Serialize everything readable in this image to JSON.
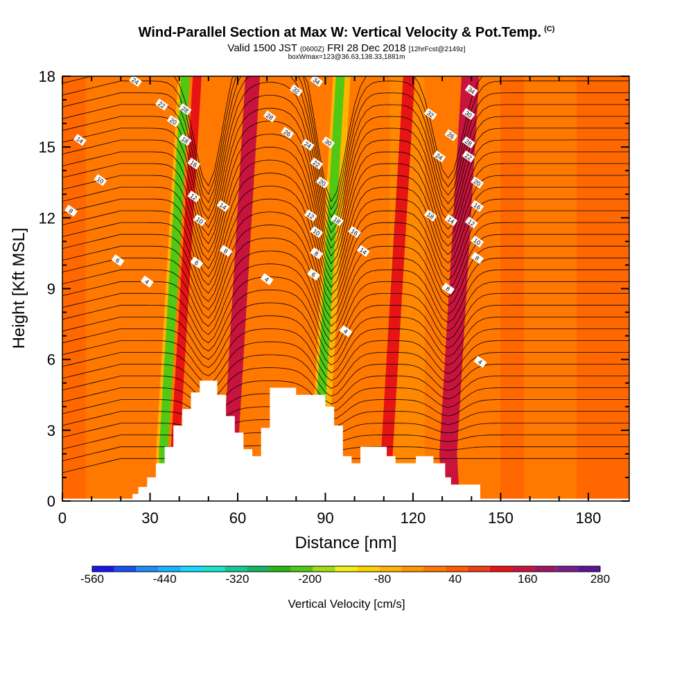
{
  "header": {
    "title": "Wind-Parallel Section at Max W: Vertical Velocity & Pot.Temp.",
    "copyright": "(C)",
    "valid_prefix": "Valid 1500 JST",
    "valid_utc": "(0600Z)",
    "valid_date": "FRI 28 Dec 2018",
    "forecast_info": "[12hrFcst@2149z]",
    "box_info": "boxWmax=123@36.63,138.33,1881m"
  },
  "chart_data": {
    "type": "heatmap",
    "xlabel": "Distance [nm]",
    "ylabel": "Height [Kft MSL]",
    "xlim": [
      0,
      194
    ],
    "ylim": [
      0,
      18
    ],
    "x_ticks": [
      0,
      30,
      60,
      90,
      120,
      150,
      180
    ],
    "y_ticks": [
      0,
      3,
      6,
      9,
      12,
      15,
      18
    ],
    "colorbar": {
      "title": "Vertical Velocity [cm/s]",
      "tick_labels": [
        "-560",
        "-440",
        "-320",
        "-200",
        "-80",
        "40",
        "160",
        "280"
      ],
      "tick_values": [
        -560,
        -440,
        -320,
        -200,
        -80,
        40,
        160,
        280
      ],
      "colors": [
        "#1a14f0",
        "#1450f0",
        "#1e8cf5",
        "#14b4ff",
        "#14d8ff",
        "#14e6c8",
        "#14c896",
        "#14b464",
        "#28b414",
        "#50c814",
        "#a0dc14",
        "#f0f014",
        "#ffd200",
        "#ffb400",
        "#ff9600",
        "#ff7800",
        "#ff5a00",
        "#f03c14",
        "#e61414",
        "#c8143c",
        "#a01464",
        "#781e8c",
        "#5a1496"
      ]
    },
    "terrain_profile": [
      [
        0,
        0.1
      ],
      [
        24,
        0.1
      ],
      [
        24,
        0.3
      ],
      [
        26,
        0.3
      ],
      [
        26,
        0.6
      ],
      [
        29,
        0.6
      ],
      [
        29,
        1.0
      ],
      [
        32,
        1.0
      ],
      [
        32,
        1.6
      ],
      [
        35,
        1.6
      ],
      [
        35,
        2.3
      ],
      [
        38,
        2.3
      ],
      [
        38,
        3.2
      ],
      [
        41,
        3.2
      ],
      [
        41,
        3.9
      ],
      [
        44,
        3.9
      ],
      [
        44,
        4.6
      ],
      [
        47,
        4.6
      ],
      [
        47,
        5.1
      ],
      [
        53,
        5.1
      ],
      [
        53,
        4.5
      ],
      [
        56,
        4.5
      ],
      [
        56,
        3.6
      ],
      [
        59,
        3.6
      ],
      [
        59,
        2.9
      ],
      [
        62,
        2.9
      ],
      [
        62,
        2.2
      ],
      [
        65,
        2.2
      ],
      [
        65,
        1.9
      ],
      [
        68,
        1.9
      ],
      [
        68,
        3.1
      ],
      [
        71,
        3.1
      ],
      [
        71,
        4.8
      ],
      [
        80,
        4.8
      ],
      [
        80,
        4.5
      ],
      [
        90,
        4.5
      ],
      [
        90,
        4.0
      ],
      [
        93,
        4.0
      ],
      [
        93,
        3.2
      ],
      [
        96,
        3.2
      ],
      [
        96,
        1.9
      ],
      [
        99,
        1.9
      ],
      [
        99,
        1.6
      ],
      [
        102,
        1.6
      ],
      [
        102,
        2.3
      ],
      [
        111,
        2.3
      ],
      [
        111,
        1.9
      ],
      [
        114,
        1.9
      ],
      [
        114,
        1.6
      ],
      [
        121,
        1.6
      ],
      [
        121,
        1.9
      ],
      [
        127,
        1.9
      ],
      [
        127,
        1.6
      ],
      [
        131,
        1.6
      ],
      [
        131,
        1.0
      ],
      [
        133,
        1.0
      ],
      [
        133,
        0.7
      ],
      [
        143,
        0.7
      ],
      [
        143,
        0.1
      ],
      [
        194,
        0.1
      ]
    ],
    "velocity_bands": [
      {
        "x_low": 33,
        "x_high": 37,
        "velocity": -80
      },
      {
        "x_low": 34,
        "x_high": 37,
        "velocity": -200
      },
      {
        "x_low": 38,
        "x_high": 41,
        "velocity": 120
      },
      {
        "x_low": 56,
        "x_high": 61,
        "velocity": 150
      },
      {
        "x_low": 57,
        "x_high": 60,
        "velocity": 170
      },
      {
        "x_low": 86,
        "x_high": 92,
        "velocity": -80
      },
      {
        "x_low": 87,
        "x_high": 90,
        "velocity": -200
      },
      {
        "x_low": 110,
        "x_high": 114,
        "velocity": 120
      },
      {
        "x_low": 130,
        "x_high": 136,
        "velocity": 150
      },
      {
        "x_low": 130,
        "x_high": 133,
        "velocity": 170
      }
    ],
    "contour_labels": [
      {
        "text": "24",
        "x": 25,
        "y": 17.8
      },
      {
        "text": "22",
        "x": 34,
        "y": 16.8
      },
      {
        "text": "28",
        "x": 42,
        "y": 16.6
      },
      {
        "text": "20",
        "x": 38,
        "y": 16.1
      },
      {
        "text": "18",
        "x": 42,
        "y": 15.3
      },
      {
        "text": "16",
        "x": 45,
        "y": 14.3
      },
      {
        "text": "14",
        "x": 6,
        "y": 15.3
      },
      {
        "text": "10",
        "x": 13,
        "y": 13.6
      },
      {
        "text": "12",
        "x": 45,
        "y": 12.9
      },
      {
        "text": "14",
        "x": 55,
        "y": 12.5
      },
      {
        "text": "10",
        "x": 47,
        "y": 11.9
      },
      {
        "text": "8",
        "x": 3,
        "y": 12.3
      },
      {
        "text": "8",
        "x": 56,
        "y": 10.6
      },
      {
        "text": "6",
        "x": 19,
        "y": 10.2
      },
      {
        "text": "6",
        "x": 46,
        "y": 10.1
      },
      {
        "text": "4",
        "x": 29,
        "y": 9.3
      },
      {
        "text": "4",
        "x": 70,
        "y": 9.4
      },
      {
        "text": "32",
        "x": 80,
        "y": 17.4
      },
      {
        "text": "34",
        "x": 87,
        "y": 17.8
      },
      {
        "text": "28",
        "x": 71,
        "y": 16.3
      },
      {
        "text": "26",
        "x": 77,
        "y": 15.6
      },
      {
        "text": "24",
        "x": 84,
        "y": 15.1
      },
      {
        "text": "30",
        "x": 91,
        "y": 15.2
      },
      {
        "text": "22",
        "x": 87,
        "y": 14.3
      },
      {
        "text": "20",
        "x": 89,
        "y": 13.5
      },
      {
        "text": "12",
        "x": 85,
        "y": 12.1
      },
      {
        "text": "18",
        "x": 94,
        "y": 11.9
      },
      {
        "text": "16",
        "x": 100,
        "y": 11.4
      },
      {
        "text": "10",
        "x": 87,
        "y": 11.4
      },
      {
        "text": "14",
        "x": 103,
        "y": 10.6
      },
      {
        "text": "8",
        "x": 87,
        "y": 10.5
      },
      {
        "text": "6",
        "x": 86,
        "y": 9.6
      },
      {
        "text": "4",
        "x": 97,
        "y": 7.2
      },
      {
        "text": "34",
        "x": 140,
        "y": 17.4
      },
      {
        "text": "32",
        "x": 126,
        "y": 16.4
      },
      {
        "text": "30",
        "x": 139,
        "y": 16.4
      },
      {
        "text": "26",
        "x": 133,
        "y": 15.5
      },
      {
        "text": "28",
        "x": 139,
        "y": 15.2
      },
      {
        "text": "24",
        "x": 129,
        "y": 14.6
      },
      {
        "text": "22",
        "x": 139,
        "y": 14.6
      },
      {
        "text": "20",
        "x": 142,
        "y": 13.5
      },
      {
        "text": "18",
        "x": 126,
        "y": 12.1
      },
      {
        "text": "16",
        "x": 142,
        "y": 12.5
      },
      {
        "text": "14",
        "x": 133,
        "y": 11.9
      },
      {
        "text": "12",
        "x": 140,
        "y": 11.8
      },
      {
        "text": "10",
        "x": 142,
        "y": 11.0
      },
      {
        "text": "8",
        "x": 142,
        "y": 10.3
      },
      {
        "text": "8",
        "x": 132,
        "y": 9.0
      },
      {
        "text": "4",
        "x": 143,
        "y": 5.9
      }
    ]
  }
}
